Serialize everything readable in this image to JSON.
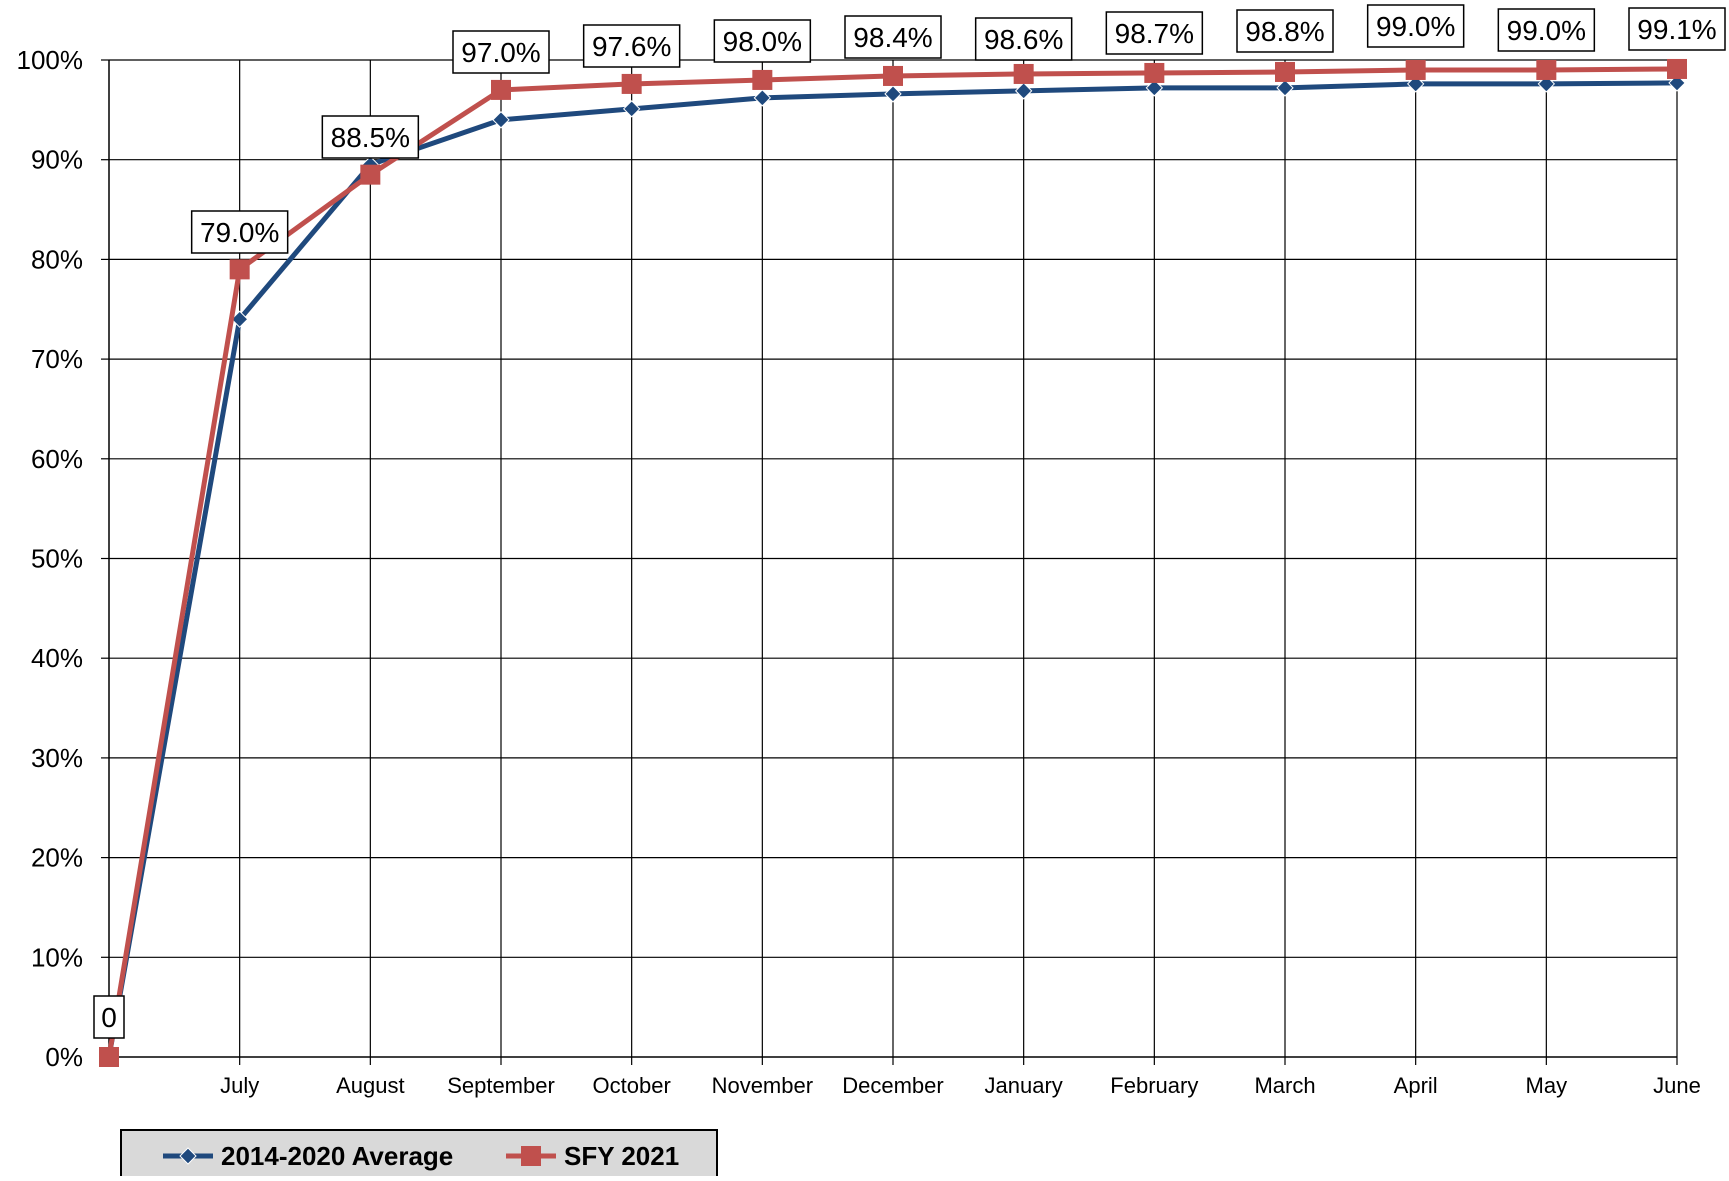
{
  "chart_data": {
    "type": "line",
    "title": "",
    "xlabel": "",
    "ylabel": "",
    "categories": [
      "",
      "July",
      "August",
      "September",
      "October",
      "November",
      "December",
      "January",
      "February",
      "March",
      "April",
      "May",
      "June"
    ],
    "ylim": [
      0,
      100
    ],
    "y_ticks": [
      "0%",
      "10%",
      "20%",
      "30%",
      "40%",
      "50%",
      "60%",
      "70%",
      "80%",
      "90%",
      "100%"
    ],
    "grid": true,
    "legend_position": "bottom-left",
    "series": [
      {
        "name": "2014-2020 Average",
        "color": "#1F497D",
        "marker": "diamond",
        "values": [
          0,
          74.0,
          89.5,
          94.0,
          95.1,
          96.2,
          96.6,
          96.9,
          97.2,
          97.2,
          97.6,
          97.6,
          97.7
        ]
      },
      {
        "name": "SFY 2021",
        "color": "#C0504D",
        "marker": "square",
        "values": [
          0,
          79.0,
          88.5,
          97.0,
          97.6,
          98.0,
          98.4,
          98.6,
          98.7,
          98.8,
          99.0,
          99.0,
          99.1
        ],
        "data_labels": [
          "0",
          "79.0%",
          "88.5%",
          "97.0%",
          "97.6%",
          "98.0%",
          "98.4%",
          "98.6%",
          "98.7%",
          "98.8%",
          "99.0%",
          "99.0%",
          "99.1%"
        ]
      }
    ]
  }
}
